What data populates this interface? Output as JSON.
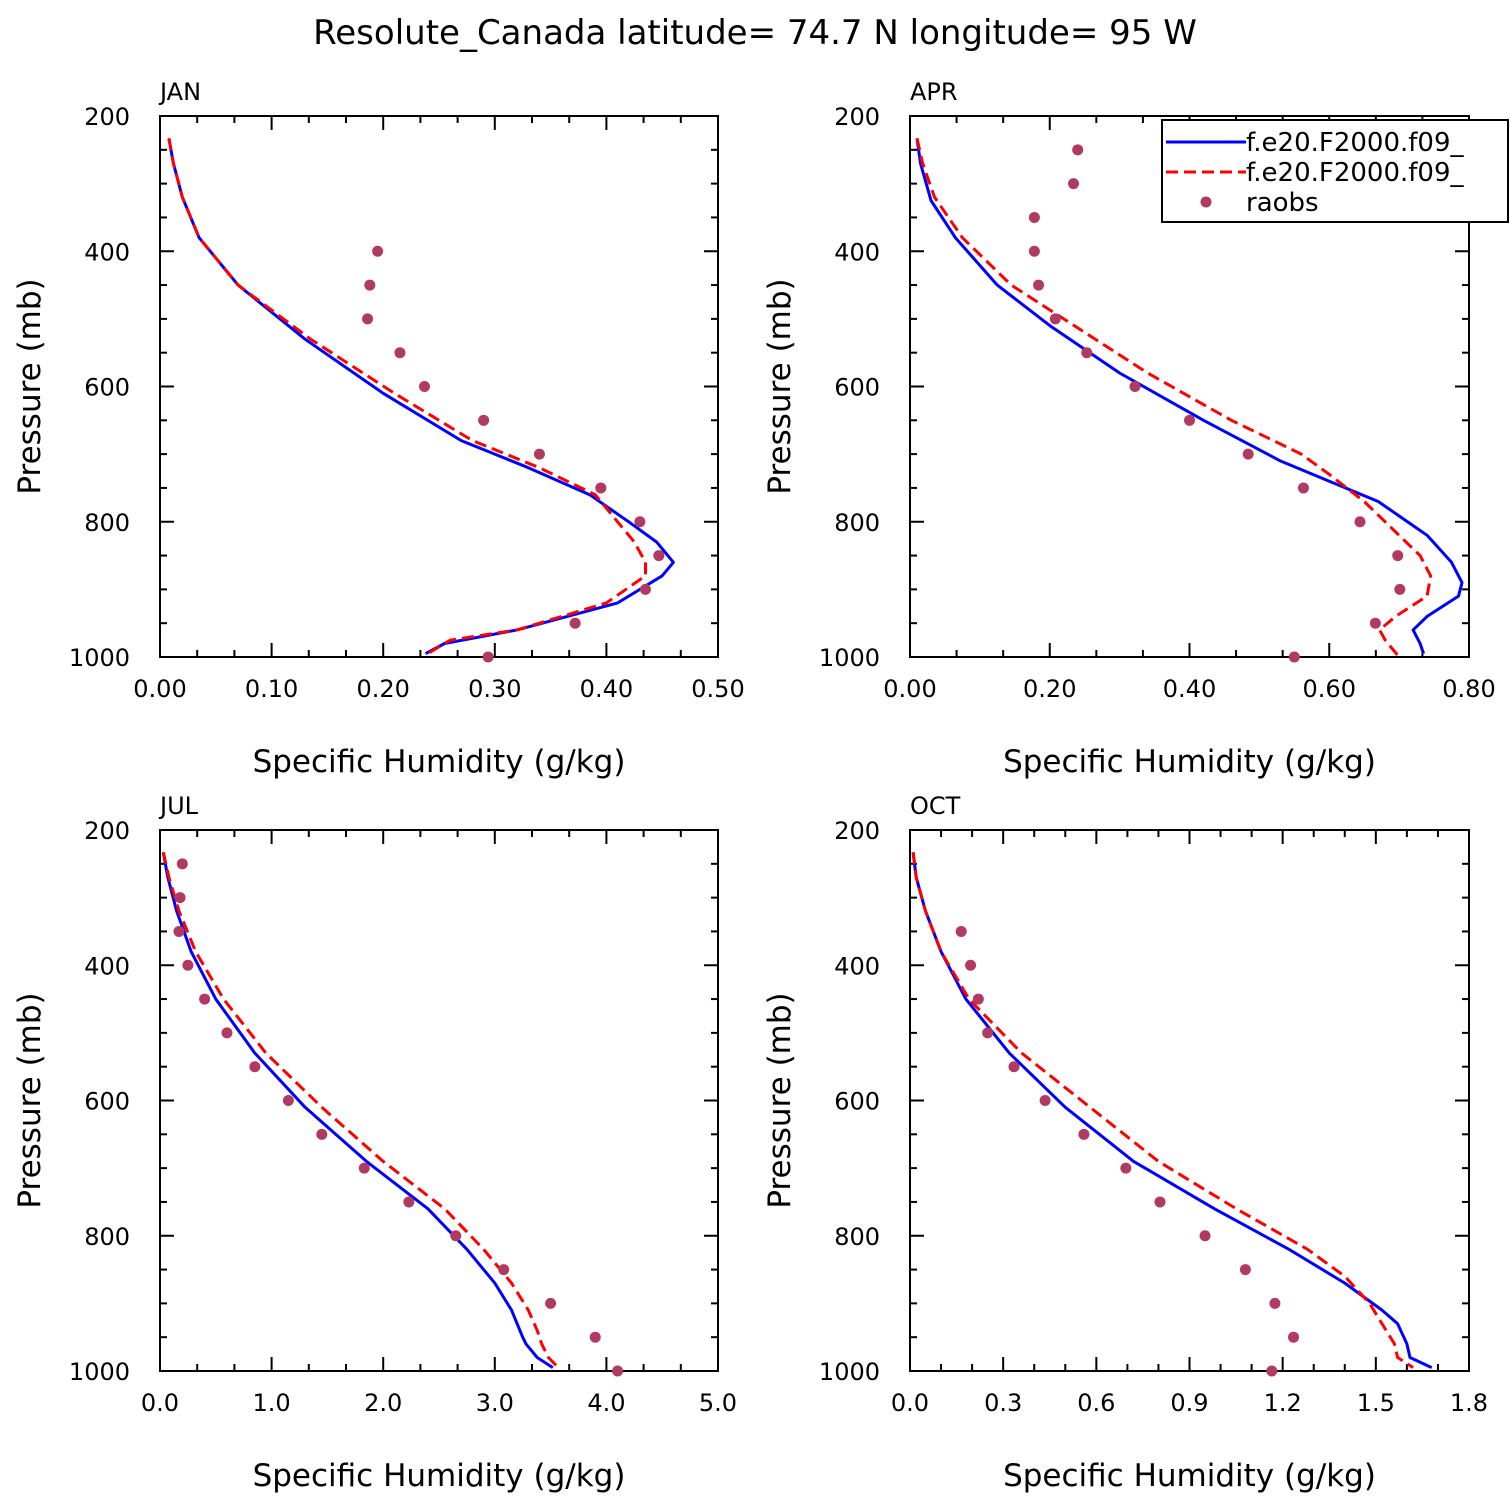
{
  "title": "Resolute_Canada  latitude= 74.7 N longitude= 95 W",
  "colors": {
    "series1": "#0000ff",
    "series2": "#ff0000",
    "raobs": "#b03a60",
    "axes": "#000000"
  },
  "legend": {
    "placement": "top-right of APR panel",
    "entries": [
      "f.e20.F2000.f09_",
      "f.e20.F2000.f09_",
      "raobs"
    ]
  },
  "chart_data": [
    {
      "type": "line",
      "panel": "JAN",
      "xlabel": "Specific Humidity (g/kg)",
      "ylabel": "Pressure (mb)",
      "xlim": [
        0,
        0.5
      ],
      "ylim": [
        200,
        1000
      ],
      "y_inverted": true,
      "xticks": [
        "0.00",
        "0.10",
        "0.20",
        "0.30",
        "0.40",
        "0.50"
      ],
      "yticks": [
        "200",
        "400",
        "600",
        "800",
        "1000"
      ],
      "series": [
        {
          "x": [
            0.008,
            0.012,
            0.02,
            0.035,
            0.07,
            0.13,
            0.2,
            0.27,
            0.33,
            0.385,
            0.42,
            0.445,
            0.46,
            0.45,
            0.41,
            0.32,
            0.255,
            0.238
          ],
          "y": [
            233,
            270,
            320,
            380,
            450,
            530,
            610,
            680,
            720,
            760,
            800,
            830,
            860,
            880,
            920,
            960,
            980,
            995
          ]
        },
        {
          "x": [
            0.008,
            0.012,
            0.02,
            0.035,
            0.07,
            0.135,
            0.21,
            0.28,
            0.34,
            0.39,
            0.41,
            0.425,
            0.435,
            0.435,
            0.4,
            0.32,
            0.26,
            0.24
          ],
          "y": [
            233,
            270,
            320,
            380,
            450,
            530,
            610,
            680,
            720,
            760,
            800,
            830,
            860,
            880,
            920,
            960,
            975,
            995
          ]
        },
        {
          "x": [
            0.195,
            0.188,
            0.186,
            0.215,
            0.237,
            0.29,
            0.34,
            0.395,
            0.43,
            0.447,
            0.435,
            0.372,
            0.294
          ],
          "y": [
            400,
            450,
            500,
            550,
            600,
            650,
            700,
            750,
            800,
            850,
            900,
            950,
            1000
          ]
        }
      ]
    },
    {
      "type": "line",
      "panel": "APR",
      "xlabel": "Specific Humidity (g/kg)",
      "ylabel": "Pressure (mb)",
      "xlim": [
        0,
        0.8
      ],
      "ylim": [
        200,
        1000
      ],
      "y_inverted": true,
      "xticks": [
        "0.00",
        "0.20",
        "0.40",
        "0.60",
        "0.80"
      ],
      "yticks": [
        "200",
        "400",
        "600",
        "800",
        "1000"
      ],
      "series": [
        {
          "x": [
            0.01,
            0.015,
            0.03,
            0.065,
            0.125,
            0.2,
            0.3,
            0.42,
            0.53,
            0.6,
            0.67,
            0.74,
            0.775,
            0.79,
            0.785,
            0.74,
            0.72,
            0.73,
            0.735
          ],
          "y": [
            233,
            270,
            325,
            380,
            450,
            510,
            580,
            650,
            710,
            740,
            770,
            820,
            860,
            890,
            910,
            940,
            960,
            980,
            995
          ]
        },
        {
          "x": [
            0.01,
            0.018,
            0.035,
            0.075,
            0.145,
            0.235,
            0.34,
            0.46,
            0.56,
            0.6,
            0.65,
            0.7,
            0.73,
            0.745,
            0.74,
            0.695,
            0.672,
            0.68,
            0.7
          ],
          "y": [
            233,
            270,
            320,
            380,
            450,
            510,
            580,
            650,
            700,
            730,
            770,
            820,
            850,
            880,
            910,
            940,
            960,
            975,
            1000
          ]
        },
        {
          "x": [
            0.24,
            0.234,
            0.178,
            0.178,
            0.184,
            0.208,
            0.253,
            0.322,
            0.4,
            0.484,
            0.563,
            0.644,
            0.698,
            0.701,
            0.666,
            0.55
          ],
          "y": [
            250,
            300,
            350,
            400,
            450,
            500,
            550,
            600,
            650,
            700,
            750,
            800,
            850,
            900,
            950,
            1000
          ]
        }
      ]
    },
    {
      "type": "line",
      "panel": "JUL",
      "xlabel": "Specific Humidity (g/kg)",
      "ylabel": "Pressure (mb)",
      "xlim": [
        0,
        5
      ],
      "ylim": [
        200,
        1000
      ],
      "y_inverted": true,
      "xticks": [
        "0.0",
        "1.0",
        "2.0",
        "3.0",
        "4.0",
        "5.0"
      ],
      "yticks": [
        "200",
        "400",
        "600",
        "800",
        "1000"
      ],
      "series": [
        {
          "x": [
            0.03,
            0.07,
            0.15,
            0.28,
            0.5,
            0.85,
            1.3,
            1.85,
            2.4,
            2.75,
            3.0,
            3.15,
            3.25,
            3.28,
            3.38,
            3.52
          ],
          "y": [
            233,
            270,
            320,
            380,
            450,
            530,
            610,
            690,
            760,
            820,
            870,
            910,
            950,
            960,
            980,
            995
          ]
        },
        {
          "x": [
            0.03,
            0.08,
            0.17,
            0.32,
            0.57,
            0.95,
            1.45,
            2.0,
            2.55,
            2.9,
            3.15,
            3.3,
            3.38,
            3.42,
            3.48,
            3.57
          ],
          "y": [
            233,
            270,
            320,
            380,
            450,
            530,
            610,
            690,
            760,
            820,
            870,
            910,
            940,
            960,
            980,
            995
          ]
        },
        {
          "x": [
            0.2,
            0.18,
            0.17,
            0.25,
            0.4,
            0.6,
            0.85,
            1.15,
            1.45,
            1.83,
            2.23,
            2.65,
            3.08,
            3.5,
            3.9,
            4.1
          ],
          "y": [
            250,
            300,
            350,
            400,
            450,
            500,
            550,
            600,
            650,
            700,
            750,
            800,
            850,
            900,
            950,
            1000
          ]
        }
      ]
    },
    {
      "type": "line",
      "panel": "OCT",
      "xlabel": "Specific Humidity (g/kg)",
      "ylabel": "Pressure (mb)",
      "xlim": [
        0,
        1.8
      ],
      "ylim": [
        200,
        1000
      ],
      "y_inverted": true,
      "xticks": [
        "0.0",
        "0.3",
        "0.6",
        "0.9",
        "1.2",
        "1.5",
        "1.8"
      ],
      "yticks": [
        "200",
        "400",
        "600",
        "800",
        "1000"
      ],
      "series": [
        {
          "x": [
            0.01,
            0.02,
            0.05,
            0.1,
            0.18,
            0.32,
            0.5,
            0.72,
            0.98,
            1.22,
            1.4,
            1.52,
            1.57,
            1.6,
            1.61,
            1.68
          ],
          "y": [
            233,
            270,
            320,
            380,
            450,
            530,
            610,
            690,
            760,
            820,
            870,
            910,
            930,
            960,
            980,
            995
          ]
        },
        {
          "x": [
            0.01,
            0.02,
            0.05,
            0.1,
            0.19,
            0.36,
            0.58,
            0.8,
            1.05,
            1.28,
            1.4,
            1.48,
            1.52,
            1.56,
            1.57,
            1.62
          ],
          "y": [
            233,
            270,
            320,
            380,
            450,
            530,
            610,
            690,
            760,
            820,
            860,
            900,
            930,
            960,
            980,
            995
          ]
        },
        {
          "x": [
            0.165,
            0.195,
            0.22,
            0.25,
            0.335,
            0.435,
            0.56,
            0.695,
            0.805,
            0.95,
            1.08,
            1.175,
            1.235,
            1.165
          ],
          "y": [
            350,
            400,
            450,
            500,
            550,
            600,
            650,
            700,
            750,
            800,
            850,
            900,
            950,
            1000
          ]
        }
      ]
    }
  ]
}
